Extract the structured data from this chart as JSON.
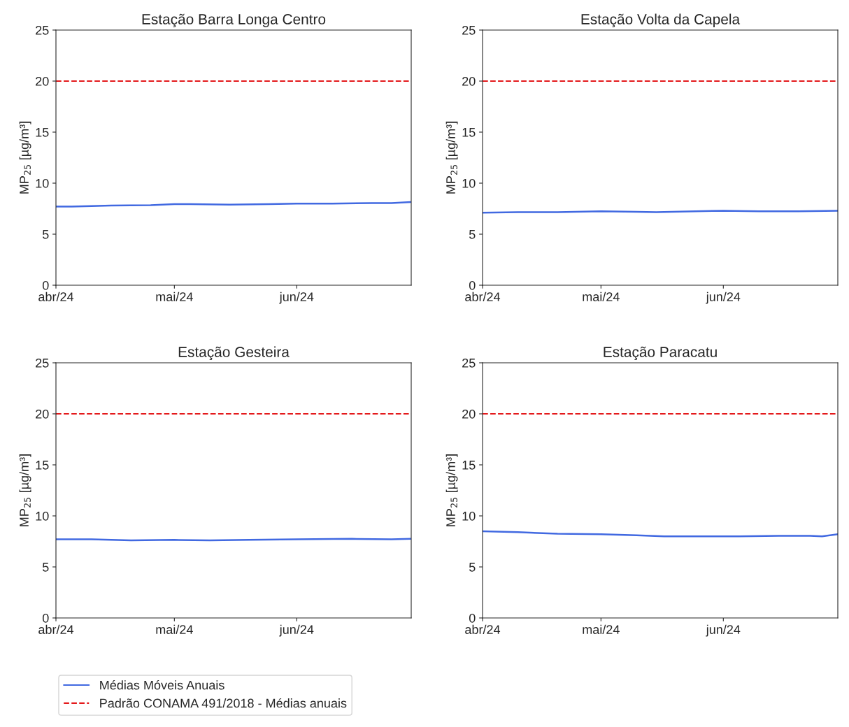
{
  "chart_data": [
    {
      "type": "line",
      "title": "Estação Barra Longa Centro",
      "ylabel": "MP$_{25}$ [µg/m³]",
      "xlim": [
        "2024-04-01",
        "2024-06-30"
      ],
      "xticks": [
        {
          "value": "2024-04-01",
          "label": "abr/24"
        },
        {
          "value": "2024-05-01",
          "label": "mai/24"
        },
        {
          "value": "2024-06-01",
          "label": "jun/24"
        }
      ],
      "ylim": [
        0,
        25
      ],
      "yticks": [
        0,
        5,
        10,
        15,
        20,
        25
      ],
      "grid": false,
      "series": [
        {
          "color": "#4169e1",
          "x": [
            "2024-04-01",
            "2024-04-05",
            "2024-04-15",
            "2024-04-25",
            "2024-05-01",
            "2024-05-05",
            "2024-05-15",
            "2024-05-25",
            "2024-06-01",
            "2024-06-10",
            "2024-06-20",
            "2024-06-25",
            "2024-06-30"
          ],
          "values": [
            7.7,
            7.7,
            7.8,
            7.85,
            7.95,
            7.95,
            7.9,
            7.95,
            8.0,
            8.0,
            8.05,
            8.05,
            8.15
          ]
        }
      ],
      "ref_lines": [
        {
          "axis": "y",
          "value": 20,
          "color": "#e41a1c",
          "line_style": "dashed"
        }
      ]
    },
    {
      "type": "line",
      "title": "Estação Volta da Capela",
      "ylabel": "MP$_{25}$ [µg/m³]",
      "xlim": [
        "2024-04-01",
        "2024-06-30"
      ],
      "xticks": [
        {
          "value": "2024-04-01",
          "label": "abr/24"
        },
        {
          "value": "2024-05-01",
          "label": "mai/24"
        },
        {
          "value": "2024-06-01",
          "label": "jun/24"
        }
      ],
      "ylim": [
        0,
        25
      ],
      "yticks": [
        0,
        5,
        10,
        15,
        20,
        25
      ],
      "grid": false,
      "series": [
        {
          "color": "#4169e1",
          "x": [
            "2024-04-01",
            "2024-04-10",
            "2024-04-20",
            "2024-05-01",
            "2024-05-10",
            "2024-05-15",
            "2024-05-25",
            "2024-06-01",
            "2024-06-10",
            "2024-06-20",
            "2024-06-30"
          ],
          "values": [
            7.1,
            7.15,
            7.15,
            7.25,
            7.2,
            7.15,
            7.25,
            7.3,
            7.25,
            7.25,
            7.3
          ]
        }
      ],
      "ref_lines": [
        {
          "axis": "y",
          "value": 20,
          "color": "#e41a1c",
          "line_style": "dashed"
        }
      ]
    },
    {
      "type": "line",
      "title": "Estação Gesteira",
      "ylabel": "MP$_{25}$ [µg/m³]",
      "xlim": [
        "2024-04-01",
        "2024-06-30"
      ],
      "xticks": [
        {
          "value": "2024-04-01",
          "label": "abr/24"
        },
        {
          "value": "2024-05-01",
          "label": "mai/24"
        },
        {
          "value": "2024-06-01",
          "label": "jun/24"
        }
      ],
      "ylim": [
        0,
        25
      ],
      "yticks": [
        0,
        5,
        10,
        15,
        20,
        25
      ],
      "grid": false,
      "legend": "bottom",
      "series": [
        {
          "name": "Médias Móveis Anuais",
          "color": "#4169e1",
          "x": [
            "2024-04-01",
            "2024-04-10",
            "2024-04-20",
            "2024-05-01",
            "2024-05-10",
            "2024-05-20",
            "2024-06-01",
            "2024-06-15",
            "2024-06-25",
            "2024-06-30"
          ],
          "values": [
            7.7,
            7.7,
            7.6,
            7.65,
            7.6,
            7.65,
            7.7,
            7.75,
            7.7,
            7.75
          ]
        }
      ],
      "ref_lines": [
        {
          "axis": "y",
          "value": 20,
          "label": "Padrão CONAMA 491/2018 - Médias anuais",
          "color": "#e41a1c",
          "line_style": "dashed"
        }
      ]
    },
    {
      "type": "line",
      "title": "Estação Paracatu",
      "ylabel": "MP$_{25}$ [µg/m³]",
      "xlim": [
        "2024-04-01",
        "2024-06-30"
      ],
      "xticks": [
        {
          "value": "2024-04-01",
          "label": "abr/24"
        },
        {
          "value": "2024-05-01",
          "label": "mai/24"
        },
        {
          "value": "2024-06-01",
          "label": "jun/24"
        }
      ],
      "ylim": [
        0,
        25
      ],
      "yticks": [
        0,
        5,
        10,
        15,
        20,
        25
      ],
      "grid": false,
      "series": [
        {
          "color": "#4169e1",
          "x": [
            "2024-04-01",
            "2024-04-10",
            "2024-04-20",
            "2024-05-01",
            "2024-05-10",
            "2024-05-17",
            "2024-05-25",
            "2024-06-05",
            "2024-06-15",
            "2024-06-23",
            "2024-06-26",
            "2024-06-30"
          ],
          "values": [
            8.5,
            8.4,
            8.25,
            8.2,
            8.1,
            8.0,
            8.0,
            8.0,
            8.05,
            8.05,
            8.0,
            8.2
          ]
        }
      ],
      "ref_lines": [
        {
          "axis": "y",
          "value": 20,
          "color": "#e41a1c",
          "line_style": "dashed"
        }
      ]
    }
  ]
}
